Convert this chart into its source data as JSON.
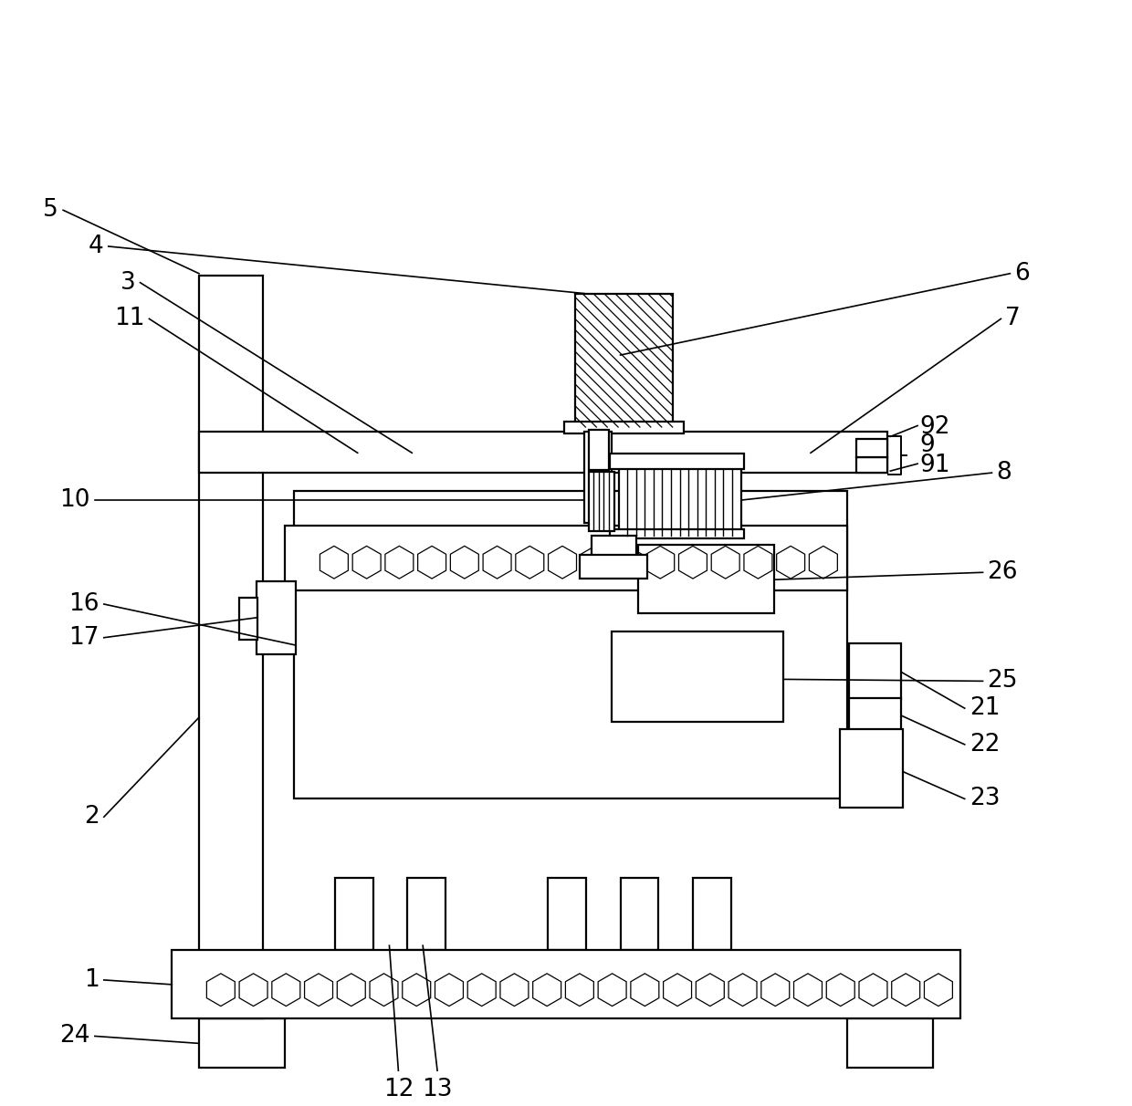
{
  "bg_color": "#ffffff",
  "line_color": "#000000",
  "fig_width": 12.4,
  "fig_height": 12.12,
  "lw": 1.6,
  "label_fs": 16
}
